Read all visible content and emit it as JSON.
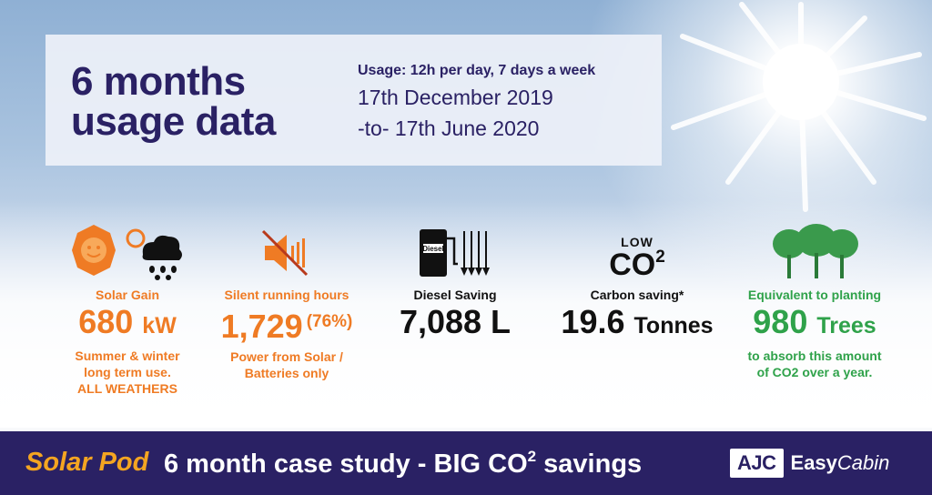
{
  "header": {
    "title_line1": "6 months",
    "title_line2": "usage data",
    "usage": "Usage: 12h per day, 7 days a week",
    "date_from": "17th December 2019",
    "date_to": "-to- 17th June 2020"
  },
  "stats": [
    {
      "id": "solar-gain",
      "label": "Solar Gain",
      "value": "680",
      "unit": "kW",
      "notes": [
        "Summer & winter",
        "long term use."
      ],
      "emphasis": "ALL WEATHERS",
      "icon": "sun-and-rain-icon",
      "color": "#ef7b24"
    },
    {
      "id": "silent-running",
      "label": "Silent running hours",
      "value": "1,729",
      "extra": "(76%)",
      "notes": [
        "Power from Solar /",
        "Batteries only"
      ],
      "icon": "muted-speaker-icon",
      "color": "#ef7b24"
    },
    {
      "id": "diesel-saving",
      "label": "Diesel Saving",
      "value": "7,088",
      "unit": "L",
      "icon": "diesel-pump-icon",
      "icon_text": "Diesel",
      "color": "#111111"
    },
    {
      "id": "carbon-saving",
      "label": "Carbon saving*",
      "value": "19.6",
      "unit": "Tonnes",
      "icon": "low-co2-icon",
      "icon_text_top": "LOW",
      "icon_text_main": "CO",
      "icon_text_sup": "2",
      "color": "#111111"
    },
    {
      "id": "trees",
      "label": "Equivalent to planting",
      "value": "980",
      "unit": "Trees",
      "notes": [
        "to absorb this amount",
        "of CO2 over a year."
      ],
      "icon": "trees-icon",
      "color": "#2fa24a"
    }
  ],
  "footer": {
    "brand": "Solar Pod",
    "tagline_start": "6 month case study - BIG CO",
    "tagline_sup": "2",
    "tagline_end": " savings",
    "logo_box": "AJC",
    "logo_easy": "Easy",
    "logo_cabin": "Cabin"
  }
}
